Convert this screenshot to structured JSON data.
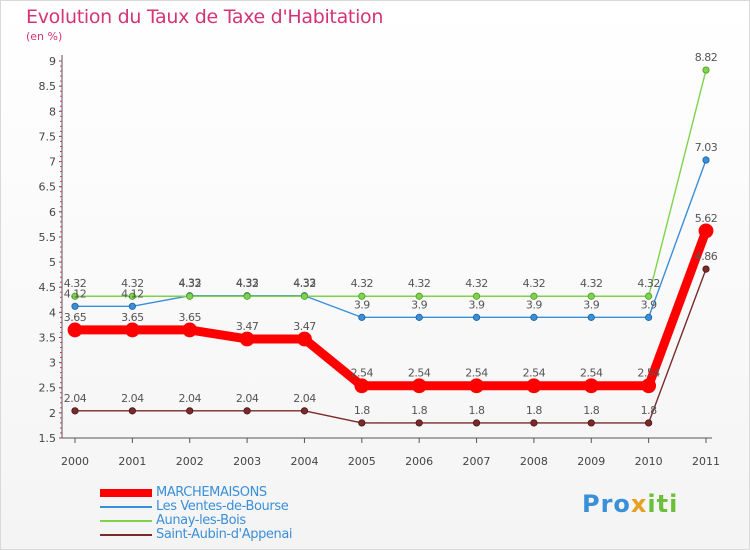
{
  "header": {
    "title": "Evolution du Taux de Taxe d'Habitation",
    "subtitle": "(en %)"
  },
  "logo": {
    "part1": "Pro",
    "part2": "x",
    "part3": "iti"
  },
  "colors": {
    "title": "#d63377",
    "legend_text": "#3a8fd9"
  },
  "chart_data": {
    "type": "line",
    "title": "Evolution du Taux de Taxe d'Habitation",
    "ylabel": "(en %)",
    "xlabel": "",
    "x": [
      "2000",
      "2001",
      "2002",
      "2003",
      "2004",
      "2005",
      "2006",
      "2007",
      "2008",
      "2009",
      "2010",
      "2011"
    ],
    "yticks": [
      "1.5",
      "2",
      "2.5",
      "3",
      "3.5",
      "4",
      "4.5",
      "5",
      "5.5",
      "6",
      "6.5",
      "7",
      "7.5",
      "8",
      "8.5",
      "9"
    ],
    "ylim": [
      1.5,
      9
    ],
    "grid": false,
    "legend_position": "bottom-left",
    "series": [
      {
        "name": "MARCHEMAISONS",
        "color": "#ff0000",
        "values": [
          3.65,
          3.65,
          3.65,
          3.47,
          3.47,
          2.54,
          2.54,
          2.54,
          2.54,
          2.54,
          2.54,
          5.62
        ],
        "labels": [
          "3.65",
          "3.65",
          "3.65",
          "3.47",
          "3.47",
          "2.54",
          "2.54",
          "2.54",
          "2.54",
          "2.54",
          "2.54",
          "5.62"
        ]
      },
      {
        "name": "Les Ventes-de-Bourse",
        "color": "#3a8fd9",
        "values": [
          4.12,
          4.12,
          4.33,
          4.33,
          4.33,
          3.9,
          3.9,
          3.9,
          3.9,
          3.9,
          3.9,
          7.03
        ],
        "labels": [
          "4.12",
          "4.12",
          "4.33",
          "4.33",
          "4.33",
          "3.9",
          "3.9",
          "3.9",
          "3.9",
          "3.9",
          "3.9",
          "7.03"
        ]
      },
      {
        "name": "Aunay-les-Bois",
        "color": "#7ed34a",
        "values": [
          4.32,
          4.32,
          4.32,
          4.32,
          4.32,
          4.32,
          4.32,
          4.32,
          4.32,
          4.32,
          4.32,
          8.82
        ],
        "labels": [
          "4.32",
          "4.32",
          "4.32",
          "4.32",
          "4.32",
          "4.32",
          "4.32",
          "4.32",
          "4.32",
          "4.32",
          "4.32",
          "8.82"
        ]
      },
      {
        "name": "Saint-Aubin-d'Appenai",
        "color": "#7a2a2a",
        "values": [
          2.04,
          2.04,
          2.04,
          2.04,
          2.04,
          1.8,
          1.8,
          1.8,
          1.8,
          1.8,
          1.8,
          4.86
        ],
        "labels": [
          "2.04",
          "2.04",
          "2.04",
          "2.04",
          "2.04",
          "1.8",
          "1.8",
          "1.8",
          "1.8",
          "1.8",
          "1.8",
          "4.86"
        ]
      }
    ]
  }
}
